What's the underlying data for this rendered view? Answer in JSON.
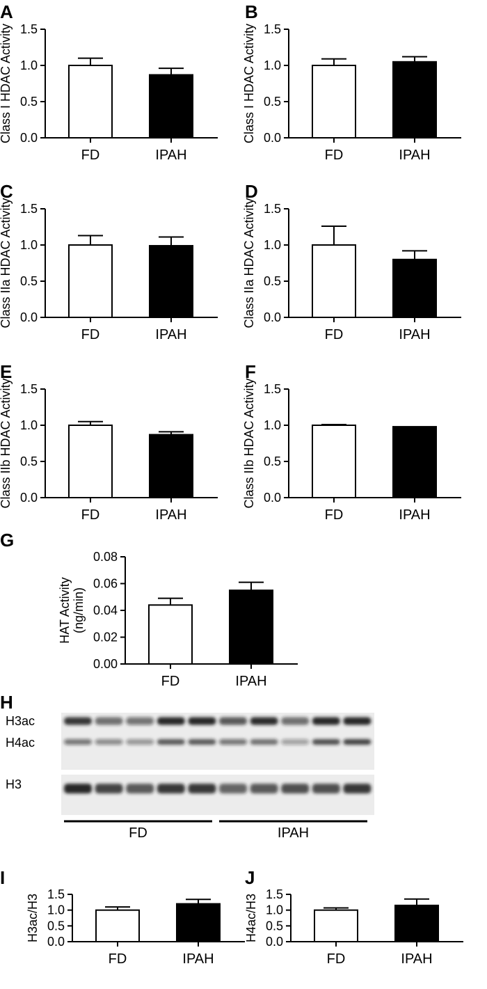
{
  "chart_data": [
    {
      "panel": "A",
      "type": "bar",
      "categories": [
        "FD",
        "IPAH"
      ],
      "values": [
        1.0,
        0.87
      ],
      "errors": [
        0.1,
        0.09
      ],
      "ylabel": [
        "Class I HDAC Activity"
      ],
      "ylim": [
        0,
        1.5
      ],
      "yticks": [
        "0.0",
        "0.5",
        "1.0",
        "1.5"
      ],
      "fills": [
        "#ffffff",
        "#000000"
      ]
    },
    {
      "panel": "B",
      "type": "bar",
      "categories": [
        "FD",
        "IPAH"
      ],
      "values": [
        1.0,
        1.05
      ],
      "errors": [
        0.09,
        0.07
      ],
      "ylabel": [
        "Class I HDAC Activity"
      ],
      "ylim": [
        0,
        1.5
      ],
      "yticks": [
        "0.0",
        "0.5",
        "1.0",
        "1.5"
      ],
      "fills": [
        "#ffffff",
        "#000000"
      ]
    },
    {
      "panel": "C",
      "type": "bar",
      "categories": [
        "FD",
        "IPAH"
      ],
      "values": [
        1.0,
        0.99
      ],
      "errors": [
        0.13,
        0.12
      ],
      "ylabel": [
        "Class IIa HDAC Activity"
      ],
      "ylim": [
        0,
        1.5
      ],
      "yticks": [
        "0.0",
        "0.5",
        "1.0",
        "1.5"
      ],
      "fills": [
        "#ffffff",
        "#000000"
      ]
    },
    {
      "panel": "D",
      "type": "bar",
      "categories": [
        "FD",
        "IPAH"
      ],
      "values": [
        1.0,
        0.8
      ],
      "errors": [
        0.26,
        0.12
      ],
      "ylabel": [
        "Class IIa HDAC Activity"
      ],
      "ylim": [
        0,
        1.5
      ],
      "yticks": [
        "0.0",
        "0.5",
        "1.0",
        "1.5"
      ],
      "fills": [
        "#ffffff",
        "#000000"
      ]
    },
    {
      "panel": "E",
      "type": "bar",
      "categories": [
        "FD",
        "IPAH"
      ],
      "values": [
        1.0,
        0.87
      ],
      "errors": [
        0.05,
        0.04
      ],
      "ylabel": [
        "Class IIb HDAC Activity"
      ],
      "ylim": [
        0,
        1.5
      ],
      "yticks": [
        "0.0",
        "0.5",
        "1.0",
        "1.5"
      ],
      "fills": [
        "#ffffff",
        "#000000"
      ]
    },
    {
      "panel": "F",
      "type": "bar",
      "categories": [
        "FD",
        "IPAH"
      ],
      "values": [
        1.0,
        0.98
      ],
      "errors": [
        0.01,
        0.0
      ],
      "ylabel": [
        "Class IIb HDAC Activity"
      ],
      "ylim": [
        0,
        1.5
      ],
      "yticks": [
        "0.0",
        "0.5",
        "1.0",
        "1.5"
      ],
      "fills": [
        "#ffffff",
        "#000000"
      ]
    },
    {
      "panel": "G",
      "type": "bar",
      "categories": [
        "FD",
        "IPAH"
      ],
      "values": [
        0.044,
        0.055
      ],
      "errors": [
        0.005,
        0.006
      ],
      "ylabel": [
        "HAT Activity",
        "(ng/min)"
      ],
      "ylim": [
        0,
        0.08
      ],
      "yticks": [
        "0.00",
        "0.02",
        "0.04",
        "0.06",
        "0.08"
      ],
      "fills": [
        "#ffffff",
        "#000000"
      ]
    },
    {
      "panel": "I",
      "type": "bar",
      "categories": [
        "FD",
        "IPAH"
      ],
      "values": [
        1.0,
        1.2
      ],
      "errors": [
        0.1,
        0.14
      ],
      "ylabel": [
        "H3ac/H3"
      ],
      "ylim": [
        0,
        1.5
      ],
      "yticks": [
        "0.0",
        "0.5",
        "1.0",
        "1.5"
      ],
      "fills": [
        "#ffffff",
        "#000000"
      ]
    },
    {
      "panel": "J",
      "type": "bar",
      "categories": [
        "FD",
        "IPAH"
      ],
      "values": [
        1.0,
        1.15
      ],
      "errors": [
        0.07,
        0.2
      ],
      "ylabel": [
        "H4ac/H3"
      ],
      "ylim": [
        0,
        1.5
      ],
      "yticks": [
        "0.0",
        "0.5",
        "1.0",
        "1.5"
      ],
      "fills": [
        "#ffffff",
        "#000000"
      ]
    }
  ],
  "blot": {
    "panel": "H",
    "rows": [
      "H3ac",
      "H4ac",
      "H3"
    ],
    "groups": [
      "FD",
      "IPAH"
    ],
    "lanes_per_group": 5,
    "band_color": "#1a1a1a",
    "membrane_color": "#ececec"
  }
}
